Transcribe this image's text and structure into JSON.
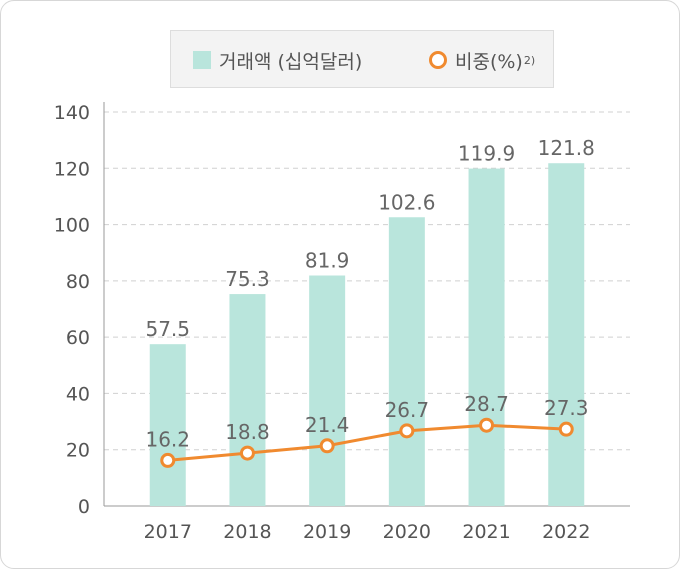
{
  "legend": {
    "bar_label": "거래액 (십억달러)",
    "line_label": "비중(%)",
    "line_label_note": "2)"
  },
  "colors": {
    "bar": "#b9e5dc",
    "line": "#f08a2f",
    "grid": "#d0d0d0",
    "text": "#555555"
  },
  "chart_data": {
    "type": "bar",
    "categories": [
      "2017",
      "2018",
      "2019",
      "2020",
      "2021",
      "2022"
    ],
    "series": [
      {
        "name": "거래액 (십억달러)",
        "type": "bar",
        "values": [
          57.5,
          75.3,
          81.9,
          102.6,
          119.9,
          121.8
        ]
      },
      {
        "name": "비중(%)",
        "type": "line",
        "values": [
          16.2,
          18.8,
          21.4,
          26.7,
          28.7,
          27.3
        ]
      }
    ],
    "y_ticks": [
      "0",
      "20",
      "40",
      "60",
      "80",
      "100",
      "120",
      "140"
    ],
    "ylim": [
      0,
      140
    ],
    "grid": true,
    "legend_position": "top"
  }
}
